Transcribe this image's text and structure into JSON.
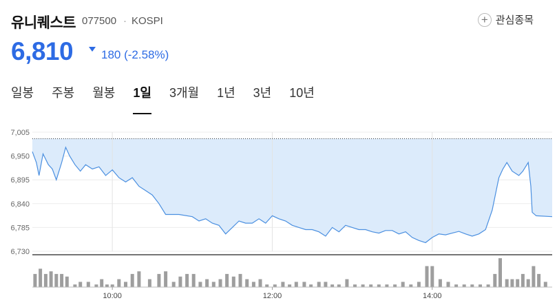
{
  "stock": {
    "name": "유니퀘스트",
    "code": "077500",
    "separator": "·",
    "market": "KOSPI",
    "watchlist_label": "관심종목",
    "price": "6,810",
    "change": "180 (-2.58%)",
    "direction": "down"
  },
  "tabs": [
    "일봉",
    "주봉",
    "월봉",
    "1일",
    "3개월",
    "1년",
    "3년",
    "10년"
  ],
  "active_tab": "1일",
  "colors": {
    "accent": "#2d6be4",
    "line": "#4a8fe0",
    "area": "#dcebfb",
    "volume": "#9e9e9e"
  },
  "chart_data": {
    "type": "area",
    "reference_price": 6990,
    "ylim": [
      6730,
      7005
    ],
    "y_ticks": [
      7005,
      6950,
      6895,
      6840,
      6785,
      6730
    ],
    "y_tick_labels": [
      "7,005",
      "6,950",
      "6,895",
      "6,840",
      "6,785",
      "6,730"
    ],
    "x_range": [
      "09:00",
      "15:30"
    ],
    "x_ticks": [
      "10:00",
      "12:00",
      "14:00"
    ],
    "price_series": [
      [
        "09:00",
        6960
      ],
      [
        "09:03",
        6935
      ],
      [
        "09:05",
        6905
      ],
      [
        "09:08",
        6955
      ],
      [
        "09:12",
        6930
      ],
      [
        "09:15",
        6920
      ],
      [
        "09:18",
        6895
      ],
      [
        "09:22",
        6935
      ],
      [
        "09:25",
        6970
      ],
      [
        "09:28",
        6950
      ],
      [
        "09:32",
        6930
      ],
      [
        "09:36",
        6915
      ],
      [
        "09:40",
        6930
      ],
      [
        "09:45",
        6920
      ],
      [
        "09:50",
        6925
      ],
      [
        "09:55",
        6905
      ],
      [
        "10:00",
        6918
      ],
      [
        "10:05",
        6900
      ],
      [
        "10:10",
        6890
      ],
      [
        "10:15",
        6900
      ],
      [
        "10:20",
        6880
      ],
      [
        "10:25",
        6870
      ],
      [
        "10:30",
        6860
      ],
      [
        "10:35",
        6840
      ],
      [
        "10:40",
        6815
      ],
      [
        "10:50",
        6815
      ],
      [
        "11:00",
        6810
      ],
      [
        "11:05",
        6800
      ],
      [
        "11:10",
        6805
      ],
      [
        "11:15",
        6795
      ],
      [
        "11:20",
        6790
      ],
      [
        "11:25",
        6770
      ],
      [
        "11:30",
        6785
      ],
      [
        "11:35",
        6800
      ],
      [
        "11:40",
        6795
      ],
      [
        "11:45",
        6795
      ],
      [
        "11:50",
        6805
      ],
      [
        "11:55",
        6795
      ],
      [
        "12:00",
        6812
      ],
      [
        "12:05",
        6805
      ],
      [
        "12:10",
        6800
      ],
      [
        "12:15",
        6790
      ],
      [
        "12:20",
        6785
      ],
      [
        "12:25",
        6780
      ],
      [
        "12:30",
        6780
      ],
      [
        "12:35",
        6775
      ],
      [
        "12:40",
        6765
      ],
      [
        "12:45",
        6785
      ],
      [
        "12:50",
        6775
      ],
      [
        "12:55",
        6790
      ],
      [
        "13:00",
        6785
      ],
      [
        "13:05",
        6780
      ],
      [
        "13:10",
        6780
      ],
      [
        "13:15",
        6775
      ],
      [
        "13:20",
        6772
      ],
      [
        "13:25",
        6778
      ],
      [
        "13:30",
        6778
      ],
      [
        "13:35",
        6770
      ],
      [
        "13:40",
        6775
      ],
      [
        "13:45",
        6762
      ],
      [
        "13:50",
        6755
      ],
      [
        "13:55",
        6750
      ],
      [
        "14:00",
        6762
      ],
      [
        "14:05",
        6770
      ],
      [
        "14:10",
        6768
      ],
      [
        "14:15",
        6772
      ],
      [
        "14:20",
        6776
      ],
      [
        "14:25",
        6770
      ],
      [
        "14:30",
        6765
      ],
      [
        "14:35",
        6770
      ],
      [
        "14:40",
        6780
      ],
      [
        "14:45",
        6825
      ],
      [
        "14:48",
        6870
      ],
      [
        "14:50",
        6900
      ],
      [
        "14:53",
        6920
      ],
      [
        "14:56",
        6935
      ],
      [
        "15:00",
        6915
      ],
      [
        "15:05",
        6905
      ],
      [
        "15:08",
        6915
      ],
      [
        "15:12",
        6935
      ],
      [
        "15:14",
        6880
      ],
      [
        "15:15",
        6820
      ],
      [
        "15:18",
        6812
      ],
      [
        "15:30",
        6810
      ]
    ],
    "volume_series": [
      [
        "09:02",
        5
      ],
      [
        "09:06",
        7
      ],
      [
        "09:10",
        5
      ],
      [
        "09:14",
        6
      ],
      [
        "09:18",
        5
      ],
      [
        "09:22",
        5
      ],
      [
        "09:26",
        4
      ],
      [
        "09:32",
        1
      ],
      [
        "09:36",
        2
      ],
      [
        "09:42",
        2
      ],
      [
        "09:48",
        1
      ],
      [
        "09:52",
        3
      ],
      [
        "09:56",
        1
      ],
      [
        "10:00",
        1
      ],
      [
        "10:05",
        3
      ],
      [
        "10:10",
        2
      ],
      [
        "10:15",
        5
      ],
      [
        "10:20",
        6
      ],
      [
        "10:28",
        3
      ],
      [
        "10:35",
        5
      ],
      [
        "10:40",
        6
      ],
      [
        "10:46",
        2
      ],
      [
        "10:51",
        4
      ],
      [
        "10:56",
        5
      ],
      [
        "11:01",
        5
      ],
      [
        "11:06",
        2
      ],
      [
        "11:11",
        3
      ],
      [
        "11:16",
        2
      ],
      [
        "11:21",
        3
      ],
      [
        "11:26",
        5
      ],
      [
        "11:31",
        4
      ],
      [
        "11:36",
        5
      ],
      [
        "11:41",
        3
      ],
      [
        "11:46",
        2
      ],
      [
        "11:51",
        3
      ],
      [
        "11:56",
        1
      ],
      [
        "12:02",
        1
      ],
      [
        "12:08",
        2
      ],
      [
        "12:13",
        1
      ],
      [
        "12:18",
        2
      ],
      [
        "12:24",
        2
      ],
      [
        "12:29",
        1
      ],
      [
        "12:35",
        2
      ],
      [
        "12:40",
        2
      ],
      [
        "12:45",
        1
      ],
      [
        "12:50",
        1
      ],
      [
        "12:56",
        3
      ],
      [
        "13:02",
        1
      ],
      [
        "13:08",
        1
      ],
      [
        "13:14",
        1
      ],
      [
        "13:20",
        1
      ],
      [
        "13:26",
        1
      ],
      [
        "13:32",
        1
      ],
      [
        "13:38",
        2
      ],
      [
        "13:44",
        1
      ],
      [
        "13:50",
        2
      ],
      [
        "13:56",
        8
      ],
      [
        "14:00",
        8
      ],
      [
        "14:06",
        3
      ],
      [
        "14:12",
        2
      ],
      [
        "14:18",
        1
      ],
      [
        "14:24",
        1
      ],
      [
        "14:30",
        1
      ],
      [
        "14:36",
        1
      ],
      [
        "14:42",
        1
      ],
      [
        "14:47",
        5
      ],
      [
        "14:51",
        11
      ],
      [
        "14:56",
        3
      ],
      [
        "15:00",
        3
      ],
      [
        "15:04",
        3
      ],
      [
        "15:08",
        5
      ],
      [
        "15:12",
        3
      ],
      [
        "15:16",
        8
      ],
      [
        "15:20",
        5
      ],
      [
        "15:25",
        2
      ]
    ]
  }
}
